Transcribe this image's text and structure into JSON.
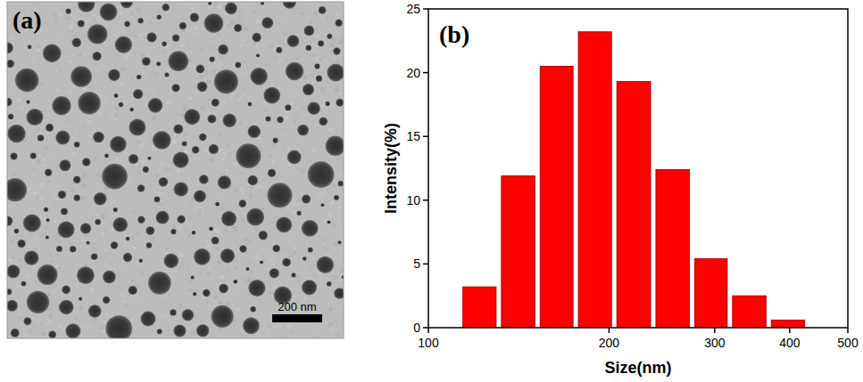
{
  "image": {
    "label": "(a)",
    "scale_bar": "200 nm"
  },
  "chart_data": {
    "type": "histogram",
    "title": "(b)",
    "x_label": "Size(nm)",
    "y_label": "Intensity(%)",
    "bins": [
      113,
      131,
      152,
      176,
      204,
      237,
      275,
      318,
      369,
      428
    ],
    "values": [
      3.2,
      11.9,
      20.5,
      23.2,
      19.3,
      12.4,
      5.4,
      2.5,
      0.6
    ],
    "color": "#ff0000",
    "log": "x",
    "xlim": [
      100,
      500
    ],
    "xticks": [
      100,
      200,
      300,
      400,
      500
    ],
    "ylim": [
      0,
      25
    ],
    "yticks": [
      0,
      5,
      10,
      15,
      20,
      25
    ],
    "grid": false
  }
}
